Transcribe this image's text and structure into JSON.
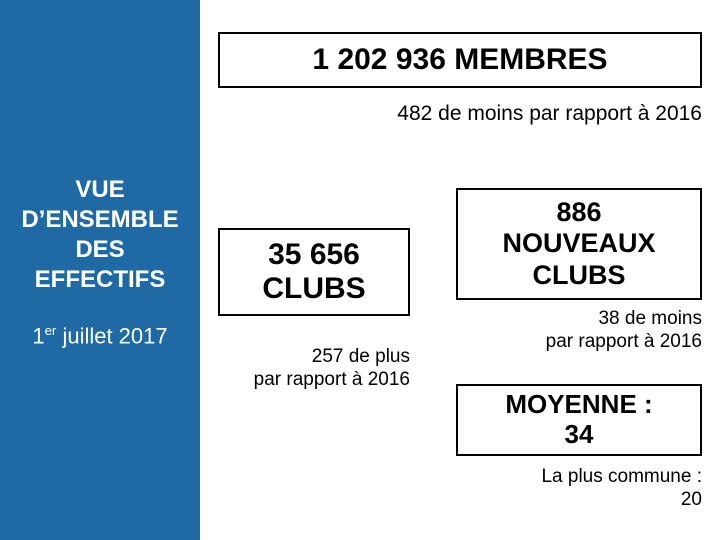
{
  "colors": {
    "sidebar_bg": "#1f6aa5",
    "sidebar_text": "#ffffff",
    "block_border": "#000000",
    "page_bg": "#ffffff",
    "text": "#000000"
  },
  "typography": {
    "title_fontsize_pt": 22,
    "big_fontsize_pt": 23,
    "note_fontsize_pt": 15
  },
  "sidebar": {
    "title_line1": "VUE",
    "title_line2": "D’ENSEMBLE",
    "title_line3": "DES",
    "title_line4": "EFFECTIFS",
    "date_prefix": "1",
    "date_super": "er",
    "date_rest": " juillet 2017"
  },
  "members": {
    "value": "1 202 936 MEMBRES",
    "note": "482 de moins par rapport à 2016"
  },
  "clubs": {
    "value_line1": "35 656",
    "value_line2": "CLUBS",
    "note_line1": "257 de plus",
    "note_line2": "par rapport à 2016"
  },
  "new_clubs": {
    "value_line1": "886",
    "value_line2": "NOUVEAUX",
    "value_line3": "CLUBS",
    "note_line1": "38 de moins",
    "note_line2": "par rapport à 2016"
  },
  "average": {
    "value_line1": "MOYENNE :",
    "value_line2": "34",
    "note_line1": "La plus commune :",
    "note_line2": "20"
  }
}
